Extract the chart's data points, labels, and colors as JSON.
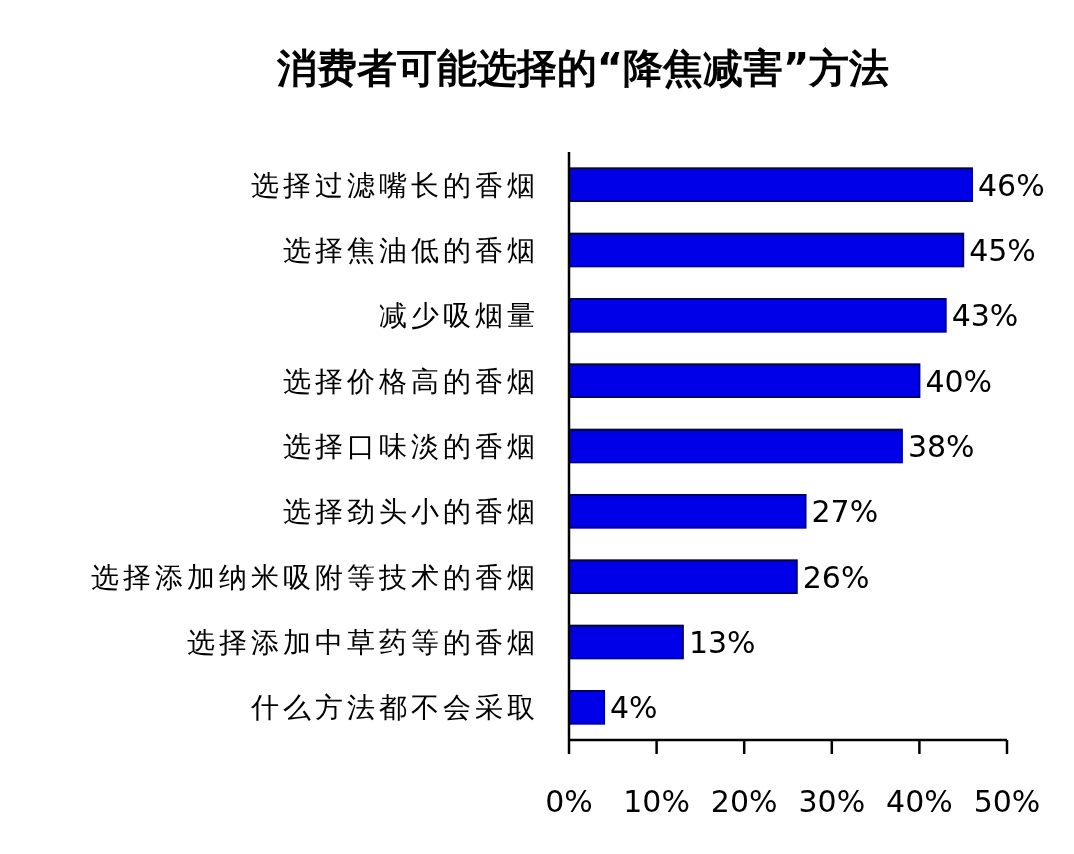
{
  "chart_data": {
    "type": "bar",
    "orientation": "horizontal",
    "title": "消费者可能选择的“降焦减害”方法",
    "categories": [
      "选择过滤嘴长的香烟",
      "选择焦油低的香烟",
      "减少吸烟量",
      "选择价格高的香烟",
      "选择口味淡的香烟",
      "选择劲头小的香烟",
      "选择添加纳米吸附等技术的香烟",
      "选择添加中草药等的香烟",
      "什么方法都不会采取"
    ],
    "values": [
      46,
      45,
      43,
      40,
      38,
      27,
      26,
      13,
      4
    ],
    "value_labels": [
      "46%",
      "45%",
      "43%",
      "40%",
      "38%",
      "27%",
      "26%",
      "13%",
      "4%"
    ],
    "color": "#0000e8",
    "xlim": [
      0,
      50
    ],
    "xticks": [
      {
        "value": 0,
        "label": "0%"
      },
      {
        "value": 10,
        "label": "10%"
      },
      {
        "value": 20,
        "label": "20%"
      },
      {
        "value": 30,
        "label": "30%"
      },
      {
        "value": 40,
        "label": "40%"
      },
      {
        "value": 50,
        "label": "50%"
      }
    ]
  }
}
